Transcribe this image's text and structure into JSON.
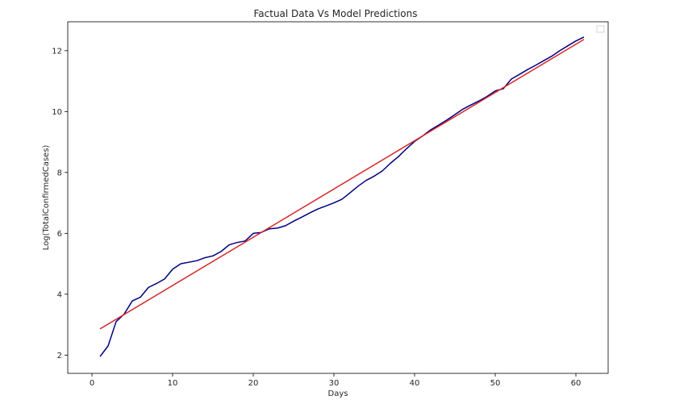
{
  "chart_data": {
    "type": "line",
    "title": "Factual Data Vs Model Predictions",
    "xlabel": "Days",
    "ylabel": "Log(TotalConfirmedCases)",
    "xlim": [
      -3,
      64
    ],
    "ylim": [
      1.4,
      12.95
    ],
    "xticks": [
      0,
      10,
      20,
      30,
      40,
      50,
      60
    ],
    "yticks": [
      2,
      4,
      6,
      8,
      10,
      12
    ],
    "grid": false,
    "legend": "top-right",
    "series": [
      {
        "color": "#000080",
        "x": [
          1,
          2,
          3,
          4,
          5,
          6,
          7,
          8,
          9,
          10,
          11,
          12,
          13,
          14,
          15,
          16,
          17,
          18,
          19,
          20,
          21,
          22,
          23,
          24,
          25,
          26,
          27,
          28,
          29,
          30,
          31,
          32,
          33,
          34,
          35,
          36,
          37,
          38,
          39,
          40,
          41,
          42,
          43,
          44,
          45,
          46,
          47,
          48,
          49,
          50,
          51,
          52,
          53,
          54,
          55,
          56,
          57,
          58,
          59,
          60,
          61
        ],
        "y": [
          1.95,
          2.3,
          3.1,
          3.35,
          3.78,
          3.9,
          4.22,
          4.35,
          4.5,
          4.82,
          5.0,
          5.05,
          5.1,
          5.2,
          5.26,
          5.4,
          5.62,
          5.7,
          5.75,
          6.0,
          6.03,
          6.15,
          6.17,
          6.25,
          6.4,
          6.53,
          6.67,
          6.8,
          6.9,
          7.0,
          7.12,
          7.33,
          7.55,
          7.74,
          7.88,
          8.05,
          8.3,
          8.52,
          8.78,
          9.02,
          9.2,
          9.4,
          9.56,
          9.72,
          9.9,
          10.08,
          10.22,
          10.35,
          10.5,
          10.68,
          10.75,
          11.07,
          11.22,
          11.38,
          11.52,
          11.67,
          11.82,
          12.0,
          12.16,
          12.32,
          12.45
        ]
      },
      {
        "color": "#d62728",
        "x": [
          1,
          61
        ],
        "y": [
          2.86,
          12.37
        ]
      }
    ]
  }
}
